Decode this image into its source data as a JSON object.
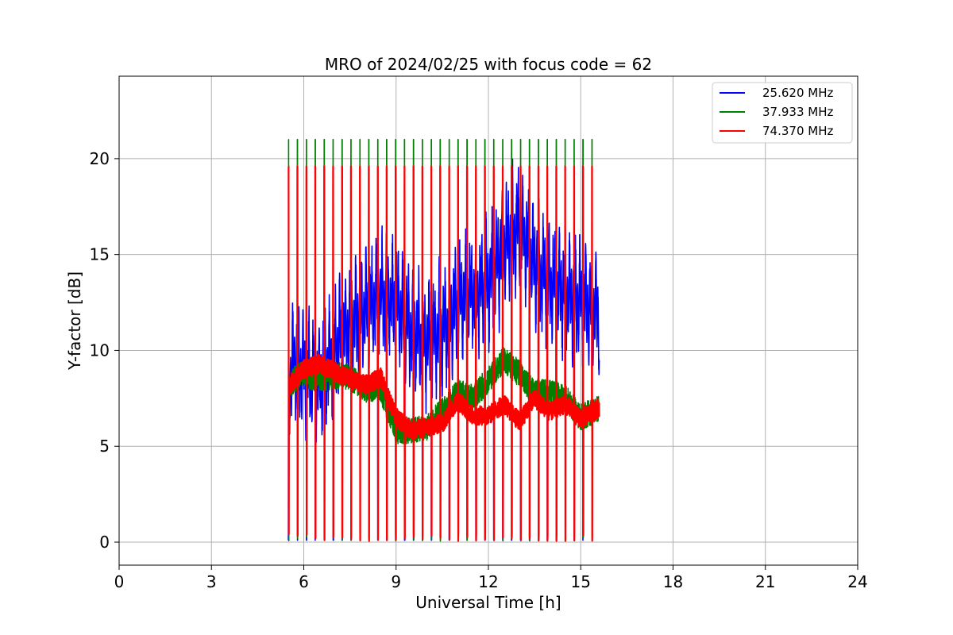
{
  "chart_data": {
    "type": "line",
    "title": "MRO of 2024/02/25 with focus code = 62",
    "xlabel": "Universal Time [h]",
    "ylabel": "Y-factor [dB]",
    "xlim": [
      0,
      24
    ],
    "ylim": [
      -1.2,
      24.3
    ],
    "xticks": [
      0,
      3,
      6,
      9,
      12,
      15,
      18,
      21,
      24
    ],
    "yticks": [
      0,
      5,
      10,
      15,
      20
    ],
    "grid": true,
    "legend_position": "top-right",
    "calibration_pulses": {
      "start_h": 5.5,
      "end_h": 15.6,
      "period_h": 0.29,
      "description": "periodic spikes reaching ~21 dB (37.933 MHz) and ~19.6 dB (74.370 MHz), dropping to ~0 dB between"
    },
    "series": [
      {
        "name": "25.620 MHz",
        "color": "#0000ff",
        "x": [
          5.5,
          5.7,
          6.0,
          6.5,
          7.0,
          7.5,
          8.0,
          8.5,
          9.0,
          9.5,
          10.0,
          10.5,
          11.0,
          11.5,
          12.0,
          12.5,
          13.0,
          13.5,
          14.0,
          14.5,
          15.0,
          15.6
        ],
        "y": [
          8.2,
          9.5,
          9.0,
          8.5,
          10.0,
          11.5,
          12.0,
          13.0,
          12.5,
          11.0,
          10.5,
          11.0,
          12.5,
          13.0,
          13.5,
          15.5,
          16.5,
          14.5,
          13.5,
          13.0,
          12.5,
          12.0
        ]
      },
      {
        "name": "37.933 MHz",
        "color": "#008000",
        "x": [
          5.5,
          5.7,
          6.0,
          6.5,
          7.0,
          7.5,
          8.0,
          8.5,
          9.0,
          9.5,
          10.0,
          10.5,
          11.0,
          11.5,
          12.0,
          12.5,
          13.0,
          13.5,
          14.0,
          14.5,
          15.0,
          15.6
        ],
        "y": [
          8.0,
          8.5,
          8.8,
          8.5,
          8.7,
          8.6,
          8.0,
          8.0,
          5.8,
          5.8,
          6.0,
          6.8,
          7.8,
          7.5,
          8.5,
          9.5,
          8.8,
          7.8,
          7.8,
          7.5,
          6.5,
          7.0
        ]
      },
      {
        "name": "74.370 MHz",
        "color": "#ff0000",
        "x": [
          5.5,
          5.7,
          6.0,
          6.5,
          7.0,
          7.5,
          8.0,
          8.5,
          9.0,
          9.5,
          10.0,
          10.5,
          11.0,
          11.5,
          12.0,
          12.5,
          13.0,
          13.5,
          14.0,
          14.5,
          15.0,
          15.6
        ],
        "y": [
          8.1,
          8.5,
          9.0,
          9.3,
          8.9,
          8.5,
          8.2,
          8.6,
          6.5,
          5.8,
          6.0,
          6.2,
          7.4,
          6.6,
          6.6,
          7.2,
          6.3,
          7.5,
          6.8,
          7.2,
          6.4,
          7.0
        ]
      }
    ]
  }
}
